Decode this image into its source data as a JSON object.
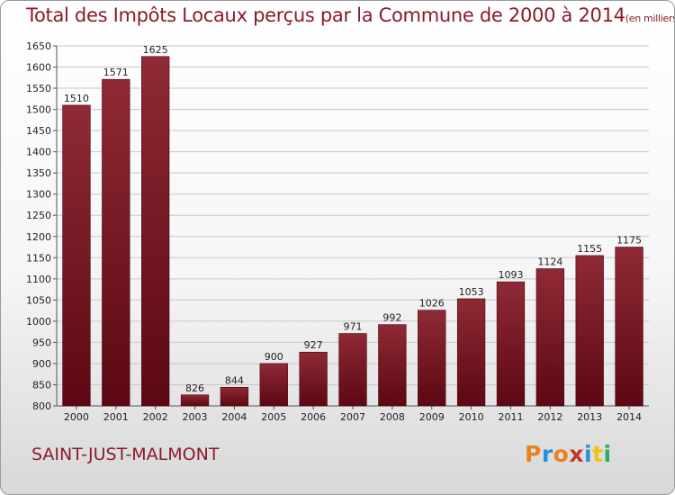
{
  "header": {
    "title": "Total des Impôts Locaux perçus par la Commune de 2000 à 2014",
    "unit": "(en milliers d'€)"
  },
  "footer": {
    "commune": "SAINT-JUST-MALMONT",
    "brand_letters": [
      "P",
      "r",
      "o",
      "x",
      "i",
      "t",
      "i"
    ],
    "brand_colors": [
      "#e8821e",
      "#2a8fd6",
      "#e8821e",
      "#c0392b",
      "#2a8fd6",
      "#f1c40f",
      "#27ae60"
    ]
  },
  "colors": {
    "bar_top": "#8e2a35",
    "bar_bottom": "#5c0812",
    "bar_edge": "#4a0510",
    "grid": "#c8c8c8",
    "accent": "#8b1a2b"
  },
  "chart_data": {
    "type": "bar",
    "title": "Total des Impôts Locaux perçus par la Commune de 2000 à 2014",
    "xlabel": "",
    "ylabel": "",
    "ylim": [
      800,
      1650
    ],
    "yticks": [
      800,
      850,
      900,
      950,
      1000,
      1050,
      1100,
      1150,
      1200,
      1250,
      1300,
      1350,
      1400,
      1450,
      1500,
      1550,
      1600,
      1650
    ],
    "grid": true,
    "categories": [
      "2000",
      "2001",
      "2002",
      "2003",
      "2004",
      "2005",
      "2006",
      "2007",
      "2008",
      "2009",
      "2010",
      "2011",
      "2012",
      "2013",
      "2014"
    ],
    "values": [
      1510,
      1571,
      1625,
      826,
      844,
      900,
      927,
      971,
      992,
      1026,
      1053,
      1093,
      1124,
      1155,
      1175
    ]
  }
}
